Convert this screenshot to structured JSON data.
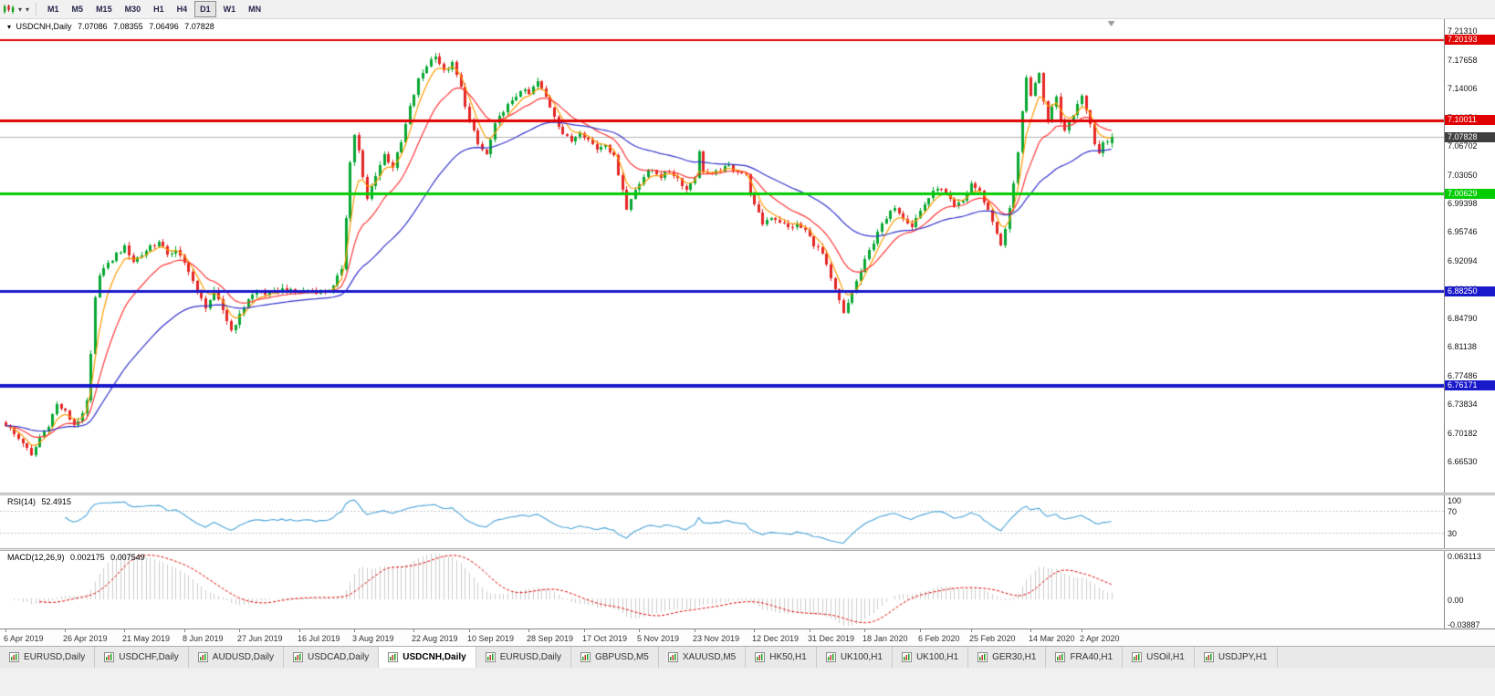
{
  "toolbar": {
    "timeframes": [
      {
        "label": "M1",
        "active": false
      },
      {
        "label": "M5",
        "active": false
      },
      {
        "label": "M15",
        "active": false
      },
      {
        "label": "M30",
        "active": false
      },
      {
        "label": "H1",
        "active": false
      },
      {
        "label": "H4",
        "active": false
      },
      {
        "label": "D1",
        "active": true
      },
      {
        "label": "W1",
        "active": false
      },
      {
        "label": "MN",
        "active": false
      }
    ]
  },
  "chart_header": {
    "symbol": "USDCNH,Daily",
    "open": "7.07086",
    "high": "7.08355",
    "low": "7.06496",
    "close": "7.07828"
  },
  "chart_data": {
    "type": "candlestick",
    "symbol": "USDCNH",
    "period": "Daily",
    "ylim": [
      6.6258,
      7.2298
    ],
    "price_axis_ticks": [
      "7.21310",
      "7.17658",
      "7.14006",
      "7.10354",
      "7.06702",
      "7.03050",
      "6.99398",
      "6.95746",
      "6.92094",
      "6.88442",
      "6.84790",
      "6.81138",
      "6.77486",
      "6.73834",
      "6.70182",
      "6.66530"
    ],
    "horizontal_levels": [
      {
        "price": 7.20193,
        "label": "7.20193",
        "color": "#e00000",
        "width": 2
      },
      {
        "price": 7.10011,
        "label": "7.10011",
        "color": "#e00000",
        "width": 3
      },
      {
        "price": 7.00629,
        "label": "7.00629",
        "color": "#00cc00",
        "width": 3
      },
      {
        "price": 6.8825,
        "label": "6.88250",
        "color": "#1919cc",
        "width": 3
      },
      {
        "price": 6.76171,
        "label": "6.76171",
        "color": "#1919cc",
        "width": 4
      }
    ],
    "current_price": {
      "value": 7.07828,
      "label": "7.07828",
      "badge_color": "#3f3f3f",
      "line_color": "#b0b0b0"
    },
    "candles": {
      "count": 261,
      "up_color": "#07a832",
      "down_color": "#e42525",
      "synth": {
        "noise": 0.0032,
        "wick": 0.0045
      },
      "last": {
        "open": 7.07086,
        "high": 7.08355,
        "low": 7.06496,
        "close": 7.07828
      },
      "close_waypoints": [
        [
          0,
          6.713
        ],
        [
          2,
          6.7
        ],
        [
          4,
          6.69
        ],
        [
          6,
          6.672
        ],
        [
          8,
          6.696
        ],
        [
          10,
          6.712
        ],
        [
          12,
          6.738
        ],
        [
          14,
          6.728
        ],
        [
          16,
          6.712
        ],
        [
          18,
          6.724
        ],
        [
          19,
          6.742
        ],
        [
          20,
          6.8
        ],
        [
          21,
          6.872
        ],
        [
          22,
          6.905
        ],
        [
          24,
          6.916
        ],
        [
          26,
          6.93
        ],
        [
          28,
          6.938
        ],
        [
          30,
          6.921
        ],
        [
          32,
          6.929
        ],
        [
          34,
          6.94
        ],
        [
          36,
          6.944
        ],
        [
          38,
          6.93
        ],
        [
          40,
          6.933
        ],
        [
          43,
          6.91
        ],
        [
          45,
          6.88
        ],
        [
          47,
          6.863
        ],
        [
          49,
          6.88
        ],
        [
          51,
          6.858
        ],
        [
          53,
          6.833
        ],
        [
          55,
          6.851
        ],
        [
          57,
          6.873
        ],
        [
          59,
          6.882
        ],
        [
          62,
          6.878
        ],
        [
          65,
          6.885
        ],
        [
          68,
          6.88
        ],
        [
          71,
          6.884
        ],
        [
          74,
          6.881
        ],
        [
          77,
          6.887
        ],
        [
          79,
          6.912
        ],
        [
          80,
          6.978
        ],
        [
          81,
          7.046
        ],
        [
          82,
          7.082
        ],
        [
          83,
          7.06
        ],
        [
          84,
          7.026
        ],
        [
          85,
          6.999
        ],
        [
          87,
          7.031
        ],
        [
          89,
          7.056
        ],
        [
          91,
          7.041
        ],
        [
          93,
          7.071
        ],
        [
          95,
          7.116
        ],
        [
          97,
          7.151
        ],
        [
          99,
          7.17
        ],
        [
          101,
          7.184
        ],
        [
          103,
          7.161
        ],
        [
          105,
          7.172
        ],
        [
          107,
          7.141
        ],
        [
          109,
          7.099
        ],
        [
          111,
          7.069
        ],
        [
          113,
          7.056
        ],
        [
          115,
          7.093
        ],
        [
          117,
          7.113
        ],
        [
          119,
          7.123
        ],
        [
          121,
          7.139
        ],
        [
          123,
          7.133
        ],
        [
          125,
          7.149
        ],
        [
          127,
          7.129
        ],
        [
          129,
          7.106
        ],
        [
          131,
          7.083
        ],
        [
          133,
          7.073
        ],
        [
          135,
          7.087
        ],
        [
          137,
          7.075
        ],
        [
          139,
          7.063
        ],
        [
          141,
          7.071
        ],
        [
          143,
          7.053
        ],
        [
          145,
          7.013
        ],
        [
          146,
          6.986
        ],
        [
          148,
          7.013
        ],
        [
          150,
          7.029
        ],
        [
          152,
          7.037
        ],
        [
          154,
          7.029
        ],
        [
          156,
          7.035
        ],
        [
          158,
          7.026
        ],
        [
          160,
          7.011
        ],
        [
          162,
          7.029
        ],
        [
          163,
          7.058
        ],
        [
          164,
          7.036
        ],
        [
          166,
          7.029
        ],
        [
          168,
          7.037
        ],
        [
          170,
          7.041
        ],
        [
          172,
          7.036
        ],
        [
          174,
          7.029
        ],
        [
          176,
          6.991
        ],
        [
          178,
          6.969
        ],
        [
          180,
          6.977
        ],
        [
          182,
          6.971
        ],
        [
          184,
          6.963
        ],
        [
          186,
          6.967
        ],
        [
          188,
          6.959
        ],
        [
          190,
          6.943
        ],
        [
          192,
          6.929
        ],
        [
          194,
          6.897
        ],
        [
          196,
          6.869
        ],
        [
          197,
          6.853
        ],
        [
          199,
          6.881
        ],
        [
          201,
          6.907
        ],
        [
          203,
          6.933
        ],
        [
          205,
          6.959
        ],
        [
          207,
          6.973
        ],
        [
          209,
          6.991
        ],
        [
          211,
          6.977
        ],
        [
          213,
          6.965
        ],
        [
          215,
          6.985
        ],
        [
          217,
          7.001
        ],
        [
          219,
          7.015
        ],
        [
          221,
          7.005
        ],
        [
          223,
          6.989
        ],
        [
          225,
          6.997
        ],
        [
          227,
          7.019
        ],
        [
          229,
          7.009
        ],
        [
          231,
          6.985
        ],
        [
          233,
          6.957
        ],
        [
          234,
          6.939
        ],
        [
          235,
          6.961
        ],
        [
          236,
          6.986
        ],
        [
          237,
          7.021
        ],
        [
          238,
          7.061
        ],
        [
          239,
          7.111
        ],
        [
          240,
          7.151
        ],
        [
          241,
          7.129
        ],
        [
          242,
          7.146
        ],
        [
          243,
          7.163
        ],
        [
          244,
          7.121
        ],
        [
          245,
          7.099
        ],
        [
          246,
          7.119
        ],
        [
          247,
          7.129
        ],
        [
          248,
          7.101
        ],
        [
          249,
          7.089
        ],
        [
          250,
          7.099
        ],
        [
          251,
          7.109
        ],
        [
          252,
          7.121
        ],
        [
          253,
          7.133
        ],
        [
          254,
          7.113
        ],
        [
          255,
          7.096
        ],
        [
          256,
          7.073
        ],
        [
          257,
          7.059
        ],
        [
          258,
          7.069
        ],
        [
          259,
          7.073
        ],
        [
          260,
          7.078
        ]
      ]
    },
    "moving_averages": [
      {
        "period_estimate": 5,
        "color": "#ff9c00"
      },
      {
        "period_estimate": 14,
        "color": "#ff3838"
      },
      {
        "period_estimate": 40,
        "color": "#3333cc"
      }
    ],
    "time_axis": [
      {
        "label": "6 Apr 2019",
        "index": 0
      },
      {
        "label": "26 Apr 2019",
        "index": 14
      },
      {
        "label": "21 May 2019",
        "index": 28
      },
      {
        "label": "8 Jun 2019",
        "index": 42
      },
      {
        "label": "27 Jun 2019",
        "index": 55
      },
      {
        "label": "16 Jul 2019",
        "index": 69
      },
      {
        "label": "3 Aug 2019",
        "index": 82
      },
      {
        "label": "22 Aug 2019",
        "index": 96
      },
      {
        "label": "10 Sep 2019",
        "index": 109
      },
      {
        "label": "28 Sep 2019",
        "index": 123
      },
      {
        "label": "17 Oct 2019",
        "index": 136
      },
      {
        "label": "5 Nov 2019",
        "index": 149
      },
      {
        "label": "23 Nov 2019",
        "index": 162
      },
      {
        "label": "12 Dec 2019",
        "index": 176
      },
      {
        "label": "31 Dec 2019",
        "index": 189
      },
      {
        "label": "18 Jan 2020",
        "index": 202
      },
      {
        "label": "6 Feb 2020",
        "index": 215
      },
      {
        "label": "25 Feb 2020",
        "index": 227
      },
      {
        "label": "14 Mar 2020",
        "index": 241
      },
      {
        "label": "2 Apr 2020",
        "index": 253
      }
    ],
    "rsi_panel": {
      "title": "RSI(14)",
      "value": "52.4915",
      "period": 14,
      "line_color": "#4aa3d8",
      "levels": [
        {
          "value": 100,
          "label": "100"
        },
        {
          "value": 70,
          "label": "70"
        },
        {
          "value": 30,
          "label": "30"
        }
      ]
    },
    "macd_panel": {
      "title": "MACD(12,26,9)",
      "main_value": "0.002175",
      "signal_value": "0.007549",
      "fast": 12,
      "slow": 26,
      "signal": 9,
      "range": [
        -0.03887,
        0.063113
      ],
      "axis_labels": [
        {
          "value": 0.063113,
          "label": "0.063113"
        },
        {
          "value": 0,
          "label": "0.00"
        },
        {
          "value": -0.03887,
          "label": "-0.03887"
        }
      ],
      "histogram_color": "#999999",
      "signal_color": "#dd0000"
    }
  },
  "bottom_tabs": [
    {
      "label": "EURUSD,Daily",
      "active": false
    },
    {
      "label": "USDCHF,Daily",
      "active": false
    },
    {
      "label": "AUDUSD,Daily",
      "active": false
    },
    {
      "label": "USDCAD,Daily",
      "active": false
    },
    {
      "label": "USDCNH,Daily",
      "active": true
    },
    {
      "label": "EURUSD,Daily",
      "active": false
    },
    {
      "label": "GBPUSD,M5",
      "active": false
    },
    {
      "label": "XAUUSD,M5",
      "active": false
    },
    {
      "label": "HK50,H1",
      "active": false
    },
    {
      "label": "UK100,H1",
      "active": false
    },
    {
      "label": "UK100,H1",
      "active": false
    },
    {
      "label": "GER30,H1",
      "active": false
    },
    {
      "label": "FRA40,H1",
      "active": false
    },
    {
      "label": "USOil,H1",
      "active": false
    },
    {
      "label": "USDJPY,H1",
      "active": false
    }
  ]
}
